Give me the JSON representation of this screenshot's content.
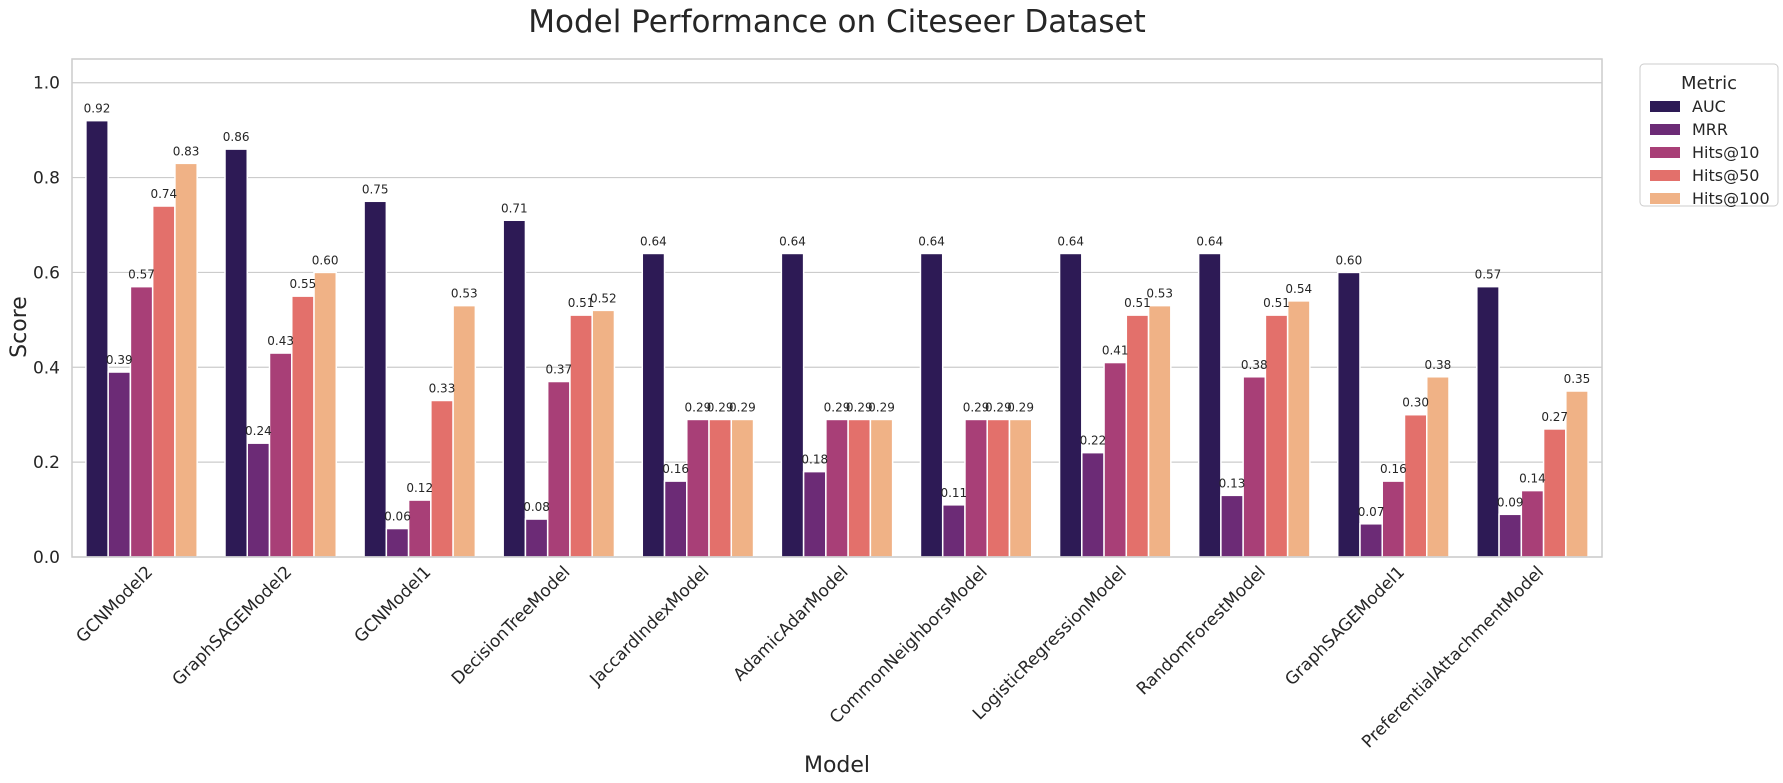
{
  "chart_data": {
    "type": "bar",
    "title": "Model Performance on Citeseer Dataset",
    "xlabel": "Model",
    "ylabel": "Score",
    "ylim": [
      0,
      1.05
    ],
    "yticks": [
      "0.0",
      "0.2",
      "0.4",
      "0.6",
      "0.8",
      "1.0"
    ],
    "grid": true,
    "legend": {
      "title": "Metric",
      "placement": "outside-top-right"
    },
    "categories": [
      "GCNModel2",
      "GraphSAGEModel2",
      "GCNModel1",
      "DecisionTreeModel",
      "JaccardIndexModel",
      "AdamicAdarModel",
      "CommonNeighborsModel",
      "LogisticRegressionModel",
      "RandomForestModel",
      "GraphSAGEModel1",
      "PreferentialAttachmentModel"
    ],
    "series": [
      {
        "name": "AUC",
        "color": "#2d1a55",
        "values": [
          0.92,
          0.86,
          0.75,
          0.71,
          0.64,
          0.64,
          0.64,
          0.64,
          0.64,
          0.6,
          0.57
        ],
        "labels": [
          "0.92",
          "0.86",
          "0.75",
          "0.71",
          "0.64",
          "0.64",
          "0.64",
          "0.64",
          "0.64",
          "0.60",
          "0.57"
        ]
      },
      {
        "name": "MRR",
        "color": "#6c2b76",
        "values": [
          0.39,
          0.24,
          0.06,
          0.08,
          0.16,
          0.18,
          0.11,
          0.22,
          0.13,
          0.07,
          0.09
        ],
        "labels": [
          "0.39",
          "0.24",
          "0.06",
          "0.08",
          "0.16",
          "0.18",
          "0.11",
          "0.22",
          "0.13",
          "0.07",
          "0.09"
        ]
      },
      {
        "name": "Hits@10",
        "color": "#a83f77",
        "values": [
          0.57,
          0.43,
          0.12,
          0.37,
          0.29,
          0.29,
          0.29,
          0.41,
          0.38,
          0.16,
          0.14
        ],
        "labels": [
          "0.57",
          "0.43",
          "0.12",
          "0.37",
          "0.29",
          "0.29",
          "0.29",
          "0.41",
          "0.38",
          "0.16",
          "0.14"
        ]
      },
      {
        "name": "Hits@50",
        "color": "#e3706b",
        "values": [
          0.74,
          0.55,
          0.33,
          0.51,
          0.29,
          0.29,
          0.29,
          0.51,
          0.51,
          0.3,
          0.27
        ],
        "labels": [
          "0.74",
          "0.55",
          "0.33",
          "0.51",
          "0.29",
          "0.29",
          "0.29",
          "0.51",
          "0.51",
          "0.30",
          "0.27"
        ]
      },
      {
        "name": "Hits@100",
        "color": "#f0b286",
        "values": [
          0.83,
          0.6,
          0.53,
          0.52,
          0.29,
          0.29,
          0.29,
          0.53,
          0.54,
          0.38,
          0.35
        ],
        "labels": [
          "0.83",
          "0.60",
          "0.53",
          "0.52",
          "0.29",
          "0.29",
          "0.29",
          "0.53",
          "0.54",
          "0.38",
          "0.35"
        ]
      }
    ]
  }
}
